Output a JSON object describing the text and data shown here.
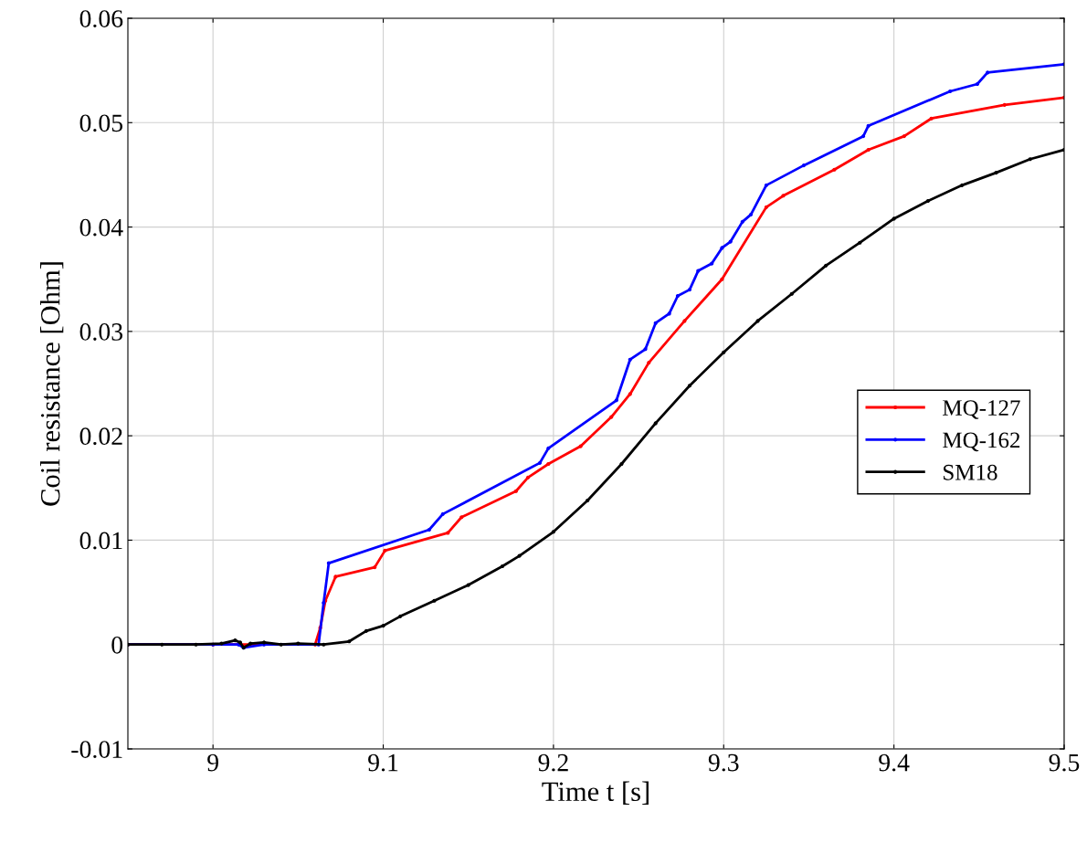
{
  "chart_data": {
    "type": "line",
    "xlabel": "Time t [s]",
    "ylabel": "Coil resistance [Ohm]",
    "xlim": [
      8.95,
      9.5
    ],
    "xticks": [
      9,
      9.1,
      9.2,
      9.3,
      9.4,
      9.5
    ],
    "ylim": [
      -0.01,
      0.06
    ],
    "yticks": [
      -0.01,
      0,
      0.01,
      0.02,
      0.03,
      0.04,
      0.05,
      0.06
    ],
    "grid": true,
    "legend": "right",
    "marker": "circle",
    "line_style": "solid",
    "series": [
      {
        "name": "MQ-127",
        "color": "#ff0000",
        "x": [
          8.95,
          9.0,
          9.06,
          9.063,
          9.066,
          9.072,
          9.095,
          9.101,
          9.138,
          9.146,
          9.178,
          9.185,
          9.197,
          9.216,
          9.234,
          9.245,
          9.256,
          9.277,
          9.299,
          9.325,
          9.335,
          9.365,
          9.385,
          9.406,
          9.422,
          9.465,
          9.5
        ],
        "values": [
          0,
          0,
          0,
          0.0016,
          0.0042,
          0.0065,
          0.0074,
          0.009,
          0.0107,
          0.0122,
          0.0147,
          0.016,
          0.0173,
          0.019,
          0.0218,
          0.024,
          0.027,
          0.031,
          0.035,
          0.0419,
          0.043,
          0.0455,
          0.0474,
          0.0487,
          0.0504,
          0.0517,
          0.0524
        ]
      },
      {
        "name": "MQ-162",
        "color": "#0000ff",
        "x": [
          8.95,
          9.0,
          9.015,
          9.018,
          9.03,
          9.062,
          9.065,
          9.068,
          9.127,
          9.135,
          9.192,
          9.197,
          9.237,
          9.245,
          9.254,
          9.26,
          9.268,
          9.273,
          9.28,
          9.285,
          9.293,
          9.299,
          9.304,
          9.311,
          9.316,
          9.325,
          9.347,
          9.382,
          9.385,
          9.433,
          9.449,
          9.455,
          9.5
        ],
        "values": [
          0,
          0,
          0,
          -0.0003,
          0,
          0,
          0.004,
          0.0078,
          0.011,
          0.0125,
          0.0174,
          0.0188,
          0.0234,
          0.0273,
          0.0283,
          0.0308,
          0.0317,
          0.0334,
          0.034,
          0.0358,
          0.0365,
          0.038,
          0.0386,
          0.0405,
          0.0412,
          0.044,
          0.0459,
          0.0487,
          0.0497,
          0.053,
          0.0537,
          0.0548,
          0.0556
        ]
      },
      {
        "name": "SM18",
        "color": "#000000",
        "x": [
          8.95,
          8.97,
          8.99,
          9.005,
          9.013,
          9.016,
          9.018,
          9.022,
          9.03,
          9.04,
          9.05,
          9.065,
          9.08,
          9.09,
          9.1,
          9.11,
          9.13,
          9.15,
          9.17,
          9.18,
          9.2,
          9.22,
          9.24,
          9.26,
          9.28,
          9.3,
          9.32,
          9.34,
          9.36,
          9.38,
          9.4,
          9.42,
          9.44,
          9.46,
          9.48,
          9.5
        ],
        "values": [
          0,
          0,
          0,
          0.0001,
          0.0004,
          0.0002,
          -0.0003,
          0.0001,
          0.0002,
          0,
          0.0001,
          0,
          0.0003,
          0.0013,
          0.0018,
          0.0027,
          0.0042,
          0.0057,
          0.0075,
          0.0085,
          0.0108,
          0.0138,
          0.0173,
          0.0212,
          0.0248,
          0.028,
          0.031,
          0.0336,
          0.0363,
          0.0385,
          0.0408,
          0.0425,
          0.044,
          0.0452,
          0.0465,
          0.0474
        ]
      }
    ]
  }
}
